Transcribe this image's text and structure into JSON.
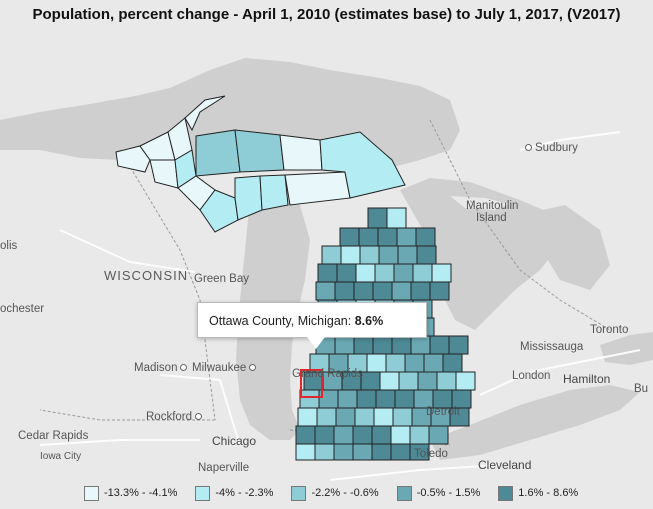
{
  "title": "Population, percent change - April 1, 2010 (estimates base) to July 1, 2017, (V2017)",
  "tooltip": {
    "county": "Ottawa County, Michigan:",
    "value": "8.6%"
  },
  "places": {
    "sudbury": "Sudbury",
    "manitoulin": "Manitoulin",
    "island": "Island",
    "wisconsin": "WISCONSIN",
    "green_bay": "Green Bay",
    "olis": "olis",
    "ochester": "ochester",
    "madison": "Madison",
    "milwaukee": "Milwaukee",
    "grand_rapids": "Grand Rapids",
    "rockford": "Rockford",
    "cedar_rapids": "Cedar Rapids",
    "chicago": "Chicago",
    "iowa_city": "Iowa City",
    "naperville": "Naperville",
    "toronto": "Toronto",
    "mississauga": "Mississauga",
    "hamilton": "Hamilton",
    "london": "London",
    "bu": "Bu",
    "detroit": "Detroit",
    "toledo": "Toledo",
    "cleveland": "Cleveland"
  },
  "legend": [
    {
      "label": "-13.3% - -4.1%",
      "color": "#e8f7fa"
    },
    {
      "label": "-4% - -2.3%",
      "color": "#b4ecf4"
    },
    {
      "label": "-2.2% - -0.6%",
      "color": "#8ecdd6"
    },
    {
      "label": "-0.5% - 1.5%",
      "color": "#6aa8b3"
    },
    {
      "label": "1.6% - 8.6%",
      "color": "#4d8a96"
    }
  ],
  "colors": {
    "land": "#e9e9e9",
    "water": "#cfcfcf",
    "border": "#222222",
    "highlight": "#e2262b"
  }
}
